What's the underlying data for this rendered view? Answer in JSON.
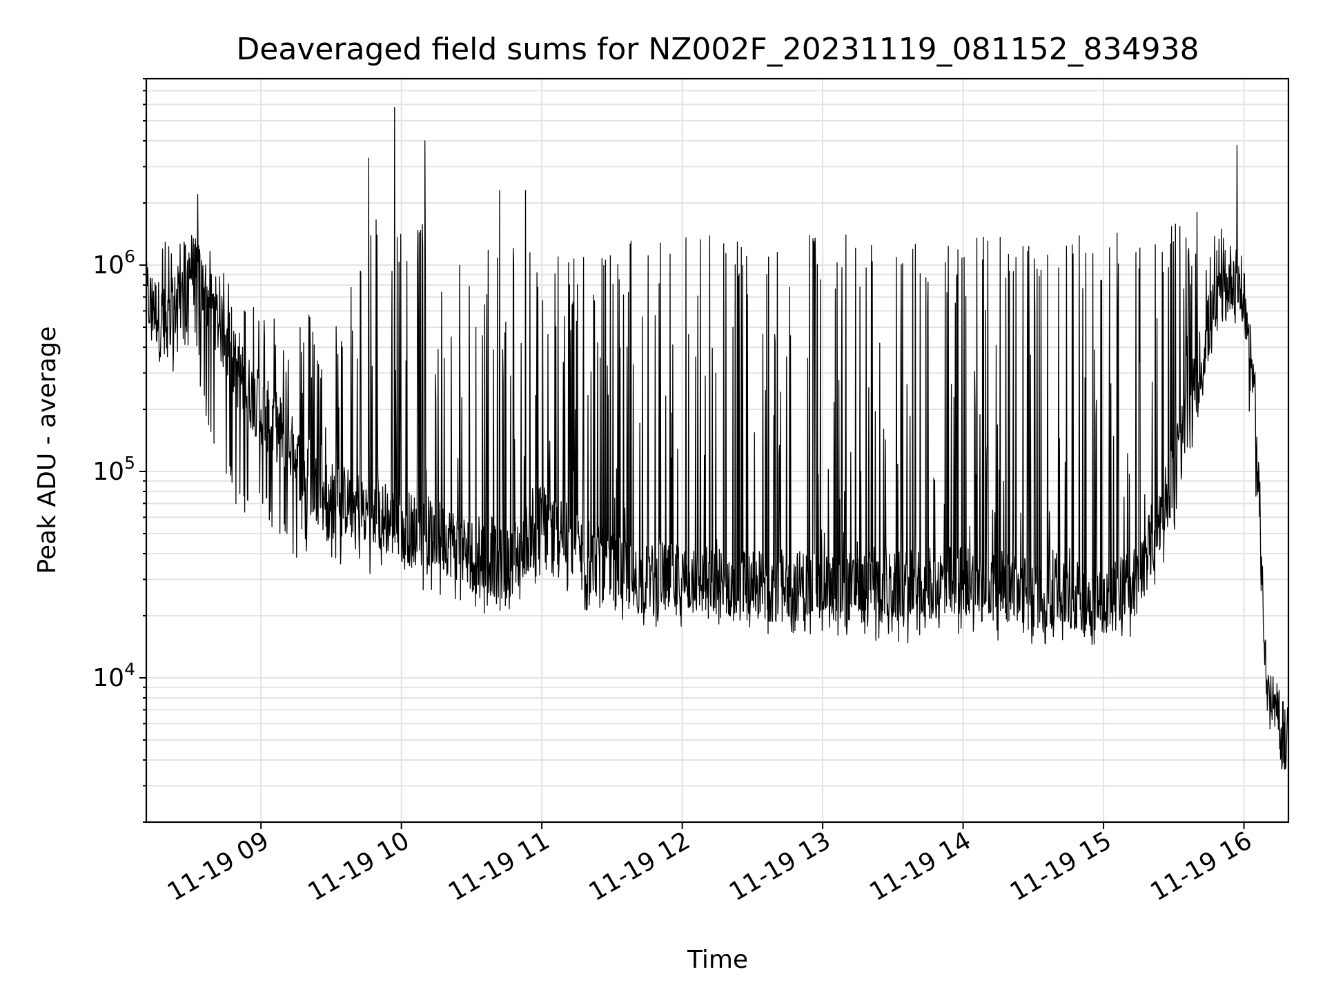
{
  "chart_data": {
    "type": "line",
    "title": "Deaveraged field sums for NZ002F_20231119_081152_834938",
    "xlabel": "Time",
    "ylabel": "Peak ADU - average",
    "yscale": "log",
    "grid": true,
    "grid_color": "#e3e3e3",
    "line_color": "#000000",
    "xlim": [
      "2023-11-19 08:11",
      "2023-11-19 16:19"
    ],
    "ylim": [
      2000,
      8000000
    ],
    "x_ticks": [
      {
        "value": "2023-11-19 09:00",
        "label": "11-19 09"
      },
      {
        "value": "2023-11-19 10:00",
        "label": "11-19 10"
      },
      {
        "value": "2023-11-19 11:00",
        "label": "11-19 11"
      },
      {
        "value": "2023-11-19 12:00",
        "label": "11-19 12"
      },
      {
        "value": "2023-11-19 13:00",
        "label": "11-19 13"
      },
      {
        "value": "2023-11-19 14:00",
        "label": "11-19 14"
      },
      {
        "value": "2023-11-19 15:00",
        "label": "11-19 15"
      },
      {
        "value": "2023-11-19 16:00",
        "label": "11-19 16"
      }
    ],
    "y_ticks": [
      {
        "value": 10000,
        "base": "10",
        "exp": "4"
      },
      {
        "value": 100000,
        "base": "10",
        "exp": "5"
      },
      {
        "value": 1000000,
        "base": "10",
        "exp": "6"
      }
    ],
    "series": [
      {
        "x": [
          "2023-11-19 08:11",
          "2023-11-19 08:20",
          "2023-11-19 08:30",
          "2023-11-19 08:40",
          "2023-11-19 08:50",
          "2023-11-19 09:00",
          "2023-11-19 09:10",
          "2023-11-19 09:20",
          "2023-11-19 09:30",
          "2023-11-19 09:40",
          "2023-11-19 09:50",
          "2023-11-19 10:00",
          "2023-11-19 10:15",
          "2023-11-19 10:30",
          "2023-11-19 10:45",
          "2023-11-19 11:00",
          "2023-11-19 11:20",
          "2023-11-19 11:40",
          "2023-11-19 12:00",
          "2023-11-19 12:30",
          "2023-11-19 13:00",
          "2023-11-19 13:30",
          "2023-11-19 14:00",
          "2023-11-19 14:30",
          "2023-11-19 15:00",
          "2023-11-19 15:15",
          "2023-11-19 15:30",
          "2023-11-19 15:45",
          "2023-11-19 15:55",
          "2023-11-19 16:00",
          "2023-11-19 16:05",
          "2023-11-19 16:10",
          "2023-11-19 16:15",
          "2023-11-19 16:19"
        ],
        "baseline": [
          700000,
          500000,
          1000000,
          600000,
          300000,
          200000,
          150000,
          90000,
          75000,
          70000,
          60000,
          55000,
          50000,
          40000,
          35000,
          60000,
          38000,
          30000,
          30000,
          28000,
          28000,
          27000,
          30000,
          26000,
          24000,
          30000,
          100000,
          500000,
          900000,
          700000,
          200000,
          8000,
          6000,
          5000
        ],
        "spike_top": [
          1000000,
          1300000,
          1400000,
          900000,
          700000,
          700000,
          600000,
          500000,
          400000,
          800000,
          1500000,
          1400000,
          1300000,
          1100000,
          1100000,
          900000,
          1100000,
          1200000,
          1200000,
          1200000,
          1200000,
          1200000,
          1200000,
          1200000,
          1200000,
          1300000,
          1400000,
          1300000,
          1200000,
          1000000,
          200000,
          9000,
          7000,
          6000
        ],
        "spike_bottom": [
          500000,
          350000,
          500000,
          150000,
          80000,
          70000,
          50000,
          45000,
          45000,
          40000,
          40000,
          38000,
          30000,
          25000,
          25000,
          35000,
          25000,
          22000,
          20000,
          20000,
          19000,
          18000,
          20000,
          18000,
          18000,
          20000,
          60000,
          400000,
          700000,
          500000,
          100000,
          7000,
          4000,
          4000
        ],
        "annotated_peaks": [
          {
            "x": "2023-11-19 08:33",
            "y": 2200000
          },
          {
            "x": "2023-11-19 09:46",
            "y": 3300000
          },
          {
            "x": "2023-11-19 09:57",
            "y": 5800000
          },
          {
            "x": "2023-11-19 10:10",
            "y": 4000000
          },
          {
            "x": "2023-11-19 10:42",
            "y": 2300000
          },
          {
            "x": "2023-11-19 10:53",
            "y": 2300000
          },
          {
            "x": "2023-11-19 15:40",
            "y": 1800000
          },
          {
            "x": "2023-11-19 15:57",
            "y": 3800000
          }
        ]
      }
    ]
  }
}
